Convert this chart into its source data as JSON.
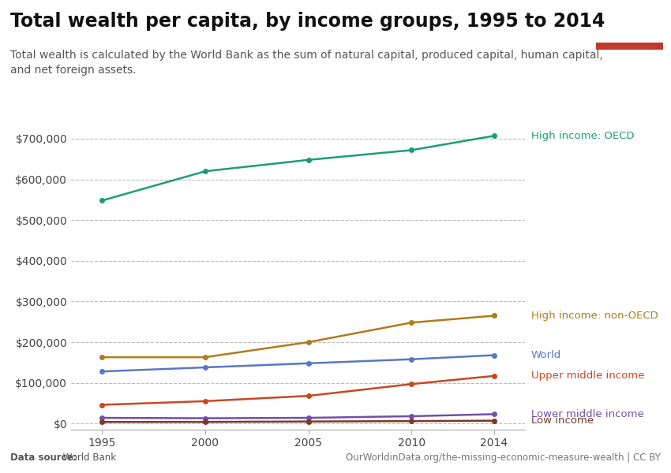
{
  "title": "Total wealth per capita, by income groups, 1995 to 2014",
  "subtitle_line1": "Total wealth is calculated by the World Bank as the sum of natural capital, produced capital, human capital,",
  "subtitle_line2": "and net foreign assets.",
  "datasource_bold": "Data source:",
  "datasource_plain": " World Bank",
  "url": "OurWorldinData.org/the-missing-economic-measure-wealth | CC BY",
  "years": [
    1995,
    2000,
    2005,
    2010,
    2014
  ],
  "series": [
    {
      "label": "High income: OECD",
      "color": "#1a9e78",
      "values": [
        548000,
        620000,
        648000,
        672000,
        707000
      ],
      "label_yoffset": 0
    },
    {
      "label": "High income: non-OECD",
      "color": "#b07c1a",
      "values": [
        163000,
        163000,
        200000,
        248000,
        265000
      ],
      "label_yoffset": 0
    },
    {
      "label": "World",
      "color": "#5878c8",
      "values": [
        128000,
        138000,
        148000,
        158000,
        168000
      ],
      "label_yoffset": 0
    },
    {
      "label": "Upper middle income",
      "color": "#c84820",
      "values": [
        46000,
        55000,
        68000,
        97000,
        117000
      ],
      "label_yoffset": 0
    },
    {
      "label": "Lower middle income",
      "color": "#7050a8",
      "values": [
        14000,
        13000,
        14000,
        18000,
        23000
      ],
      "label_yoffset": 0
    },
    {
      "label": "Low income",
      "color": "#7a3828",
      "values": [
        4000,
        4000,
        5000,
        6000,
        7000
      ],
      "label_yoffset": 0
    }
  ],
  "ylim": [
    -15000,
    760000
  ],
  "yticks": [
    0,
    100000,
    200000,
    300000,
    400000,
    500000,
    600000,
    700000
  ],
  "ytick_labels": [
    "$0",
    "$100,000",
    "$200,000",
    "$300,000",
    "$400,000",
    "$500,000",
    "$600,000",
    "$700,000"
  ],
  "xlim": [
    1993.5,
    2015.5
  ],
  "xticks": [
    1995,
    2000,
    2005,
    2010,
    2014
  ],
  "background_color": "#ffffff",
  "grid_color": "#bbbbbb",
  "title_fontsize": 17,
  "subtitle_fontsize": 10,
  "tick_fontsize": 10,
  "label_fontsize": 9.5,
  "footer_fontsize": 8.5,
  "logo_bg": "#1a3060",
  "logo_red": "#c0392b",
  "line_width": 1.8,
  "marker_size": 4
}
